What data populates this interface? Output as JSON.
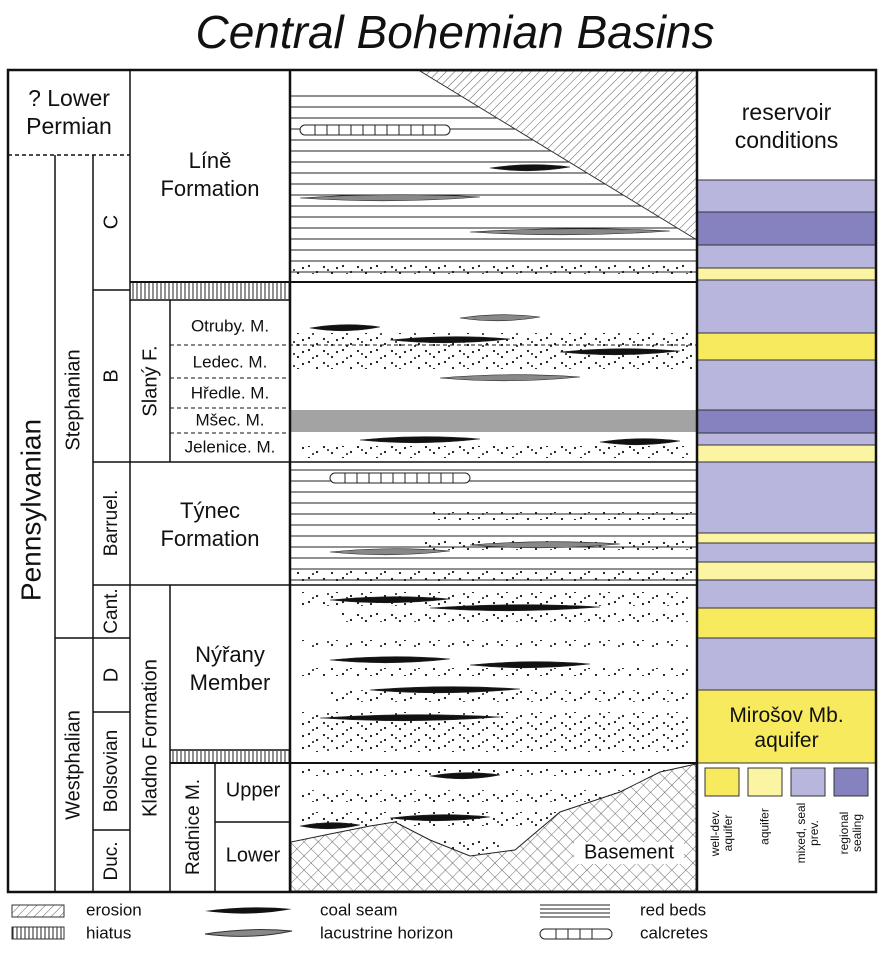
{
  "title": "Central Bohemian Basins",
  "chronostratigraphy": {
    "top": "? Lower Permian",
    "system": "Pennsylvanian",
    "series": [
      "Stephanian",
      "Westphalian"
    ],
    "stages": [
      "C",
      "B",
      "Barruel.",
      "Cant.",
      "D",
      "Bolsovian",
      "Duc."
    ]
  },
  "lithostratigraphy": {
    "formations": [
      "Líně Formation",
      "Slaný F.",
      "Týnec Formation",
      "Kladno Formation"
    ],
    "members": [
      "Otruby. M.",
      "Ledec. M.",
      "Hředle. M.",
      "Mšec. M.",
      "Jelenice. M.",
      "Nýřany Member",
      "Radnice M."
    ],
    "submembers": [
      "Upper",
      "Lower"
    ]
  },
  "lithology": {
    "basement": "Basement"
  },
  "reservoir": {
    "header": "reservoir conditions",
    "aquifer_label": "Mirošov Mb. aquifer",
    "legend": [
      "well-dev. aquifer",
      "aquifer",
      "mixed, seal prev.",
      "regional sealing"
    ]
  },
  "legend": [
    "erosion",
    "hiatus",
    "coal seam",
    "lacustrine horizon",
    "red beds",
    "calcretes"
  ]
}
